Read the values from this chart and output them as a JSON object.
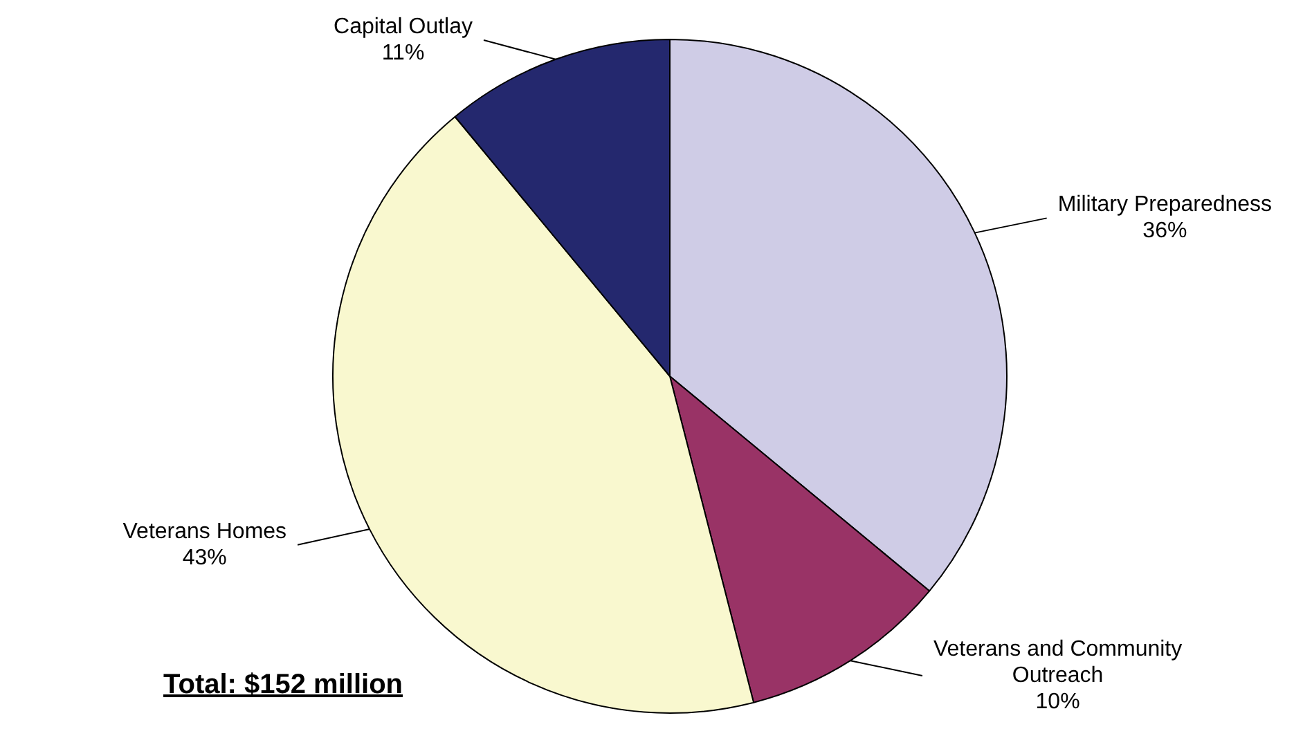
{
  "chart_data": {
    "type": "pie",
    "categories": [
      "Military Preparedness",
      "Veterans and Community Outreach",
      "Veterans Homes",
      "Capital Outlay"
    ],
    "values": [
      36,
      10,
      43,
      11
    ],
    "value_labels": [
      "36%",
      "10%",
      "43%",
      "11%"
    ],
    "colors": [
      "#cfcce6",
      "#993366",
      "#f9f8cf",
      "#24286e"
    ],
    "legend": false,
    "annotations": [
      "Total: $152 million"
    ]
  }
}
